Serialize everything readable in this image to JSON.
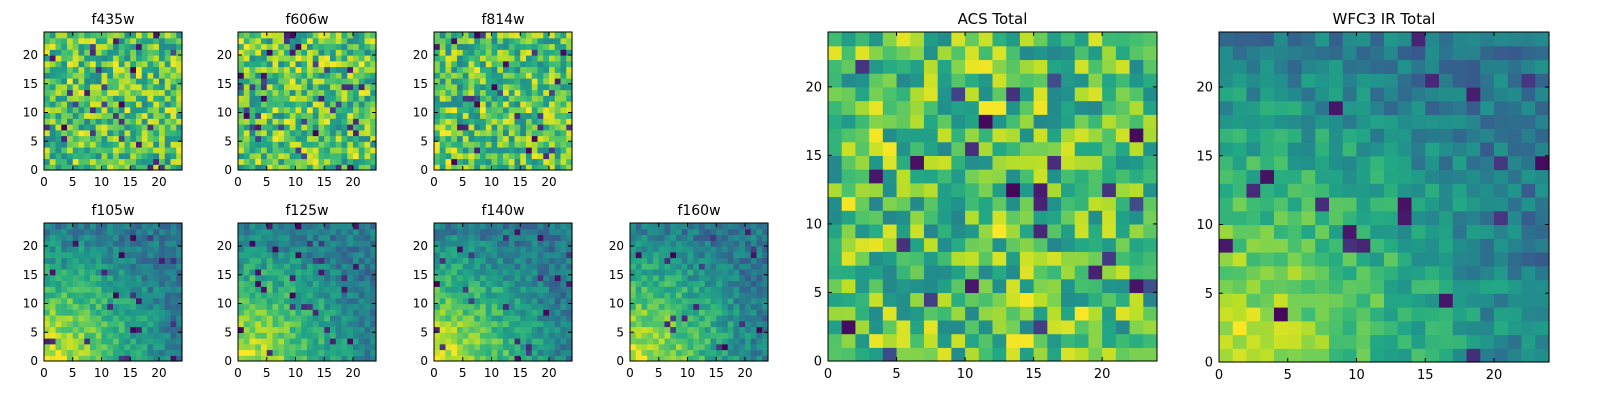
{
  "chart_data": [
    {
      "type": "heatmap",
      "title": "f435w",
      "xticks": [
        "0",
        "5",
        "10",
        "15",
        "20"
      ],
      "yticks": [
        "0",
        "5",
        "10",
        "15",
        "20"
      ],
      "grid_size": [
        24,
        24
      ],
      "xlim": [
        0,
        24
      ],
      "ylim": [
        0,
        24
      ],
      "grid": false,
      "colormap": "viridis",
      "seed": 11,
      "pattern": "noise"
    },
    {
      "type": "heatmap",
      "title": "f606w",
      "xticks": [
        "0",
        "5",
        "10",
        "15",
        "20"
      ],
      "yticks": [
        "0",
        "5",
        "10",
        "15",
        "20"
      ],
      "grid_size": [
        24,
        24
      ],
      "xlim": [
        0,
        24
      ],
      "ylim": [
        0,
        24
      ],
      "grid": false,
      "colormap": "viridis",
      "seed": 23,
      "pattern": "noise"
    },
    {
      "type": "heatmap",
      "title": "f814w",
      "xticks": [
        "0",
        "5",
        "10",
        "15",
        "20"
      ],
      "yticks": [
        "0",
        "5",
        "10",
        "15",
        "20"
      ],
      "grid_size": [
        24,
        24
      ],
      "xlim": [
        0,
        24
      ],
      "ylim": [
        0,
        24
      ],
      "grid": false,
      "colormap": "viridis",
      "seed": 37,
      "pattern": "noise"
    },
    {
      "type": "heatmap",
      "title": "f105w",
      "xticks": [
        "0",
        "5",
        "10",
        "15",
        "20"
      ],
      "yticks": [
        "0",
        "5",
        "10",
        "15",
        "20"
      ],
      "grid_size": [
        24,
        24
      ],
      "xlim": [
        0,
        24
      ],
      "ylim": [
        0,
        24
      ],
      "grid": false,
      "colormap": "viridis",
      "seed": 41,
      "pattern": "gradient"
    },
    {
      "type": "heatmap",
      "title": "f125w",
      "xticks": [
        "0",
        "5",
        "10",
        "15",
        "20"
      ],
      "yticks": [
        "0",
        "5",
        "10",
        "15",
        "20"
      ],
      "grid_size": [
        24,
        24
      ],
      "xlim": [
        0,
        24
      ],
      "ylim": [
        0,
        24
      ],
      "grid": false,
      "colormap": "viridis",
      "seed": 53,
      "pattern": "gradient"
    },
    {
      "type": "heatmap",
      "title": "f140w",
      "xticks": [
        "0",
        "5",
        "10",
        "15",
        "20"
      ],
      "yticks": [
        "0",
        "5",
        "10",
        "15",
        "20"
      ],
      "grid_size": [
        24,
        24
      ],
      "xlim": [
        0,
        24
      ],
      "ylim": [
        0,
        24
      ],
      "grid": false,
      "colormap": "viridis",
      "seed": 67,
      "pattern": "gradient"
    },
    {
      "type": "heatmap",
      "title": "f160w",
      "xticks": [
        "0",
        "5",
        "10",
        "15",
        "20"
      ],
      "yticks": [
        "0",
        "5",
        "10",
        "15",
        "20"
      ],
      "grid_size": [
        24,
        24
      ],
      "xlim": [
        0,
        24
      ],
      "ylim": [
        0,
        24
      ],
      "grid": false,
      "colormap": "viridis",
      "seed": 79,
      "pattern": "gradient"
    },
    {
      "type": "heatmap",
      "title": "ACS Total",
      "xticks": [
        "0",
        "5",
        "10",
        "15",
        "20"
      ],
      "yticks": [
        "0",
        "5",
        "10",
        "15",
        "20"
      ],
      "grid_size": [
        24,
        24
      ],
      "xlim": [
        0,
        24
      ],
      "ylim": [
        0,
        24
      ],
      "grid": false,
      "colormap": "viridis",
      "seed": 97,
      "pattern": "noise"
    },
    {
      "type": "heatmap",
      "title": "WFC3 IR Total",
      "xticks": [
        "0",
        "5",
        "10",
        "15",
        "20"
      ],
      "yticks": [
        "0",
        "5",
        "10",
        "15",
        "20"
      ],
      "grid_size": [
        24,
        24
      ],
      "xlim": [
        0,
        24
      ],
      "ylim": [
        0,
        24
      ],
      "grid": false,
      "colormap": "viridis",
      "seed": 101,
      "pattern": "gradient"
    }
  ]
}
